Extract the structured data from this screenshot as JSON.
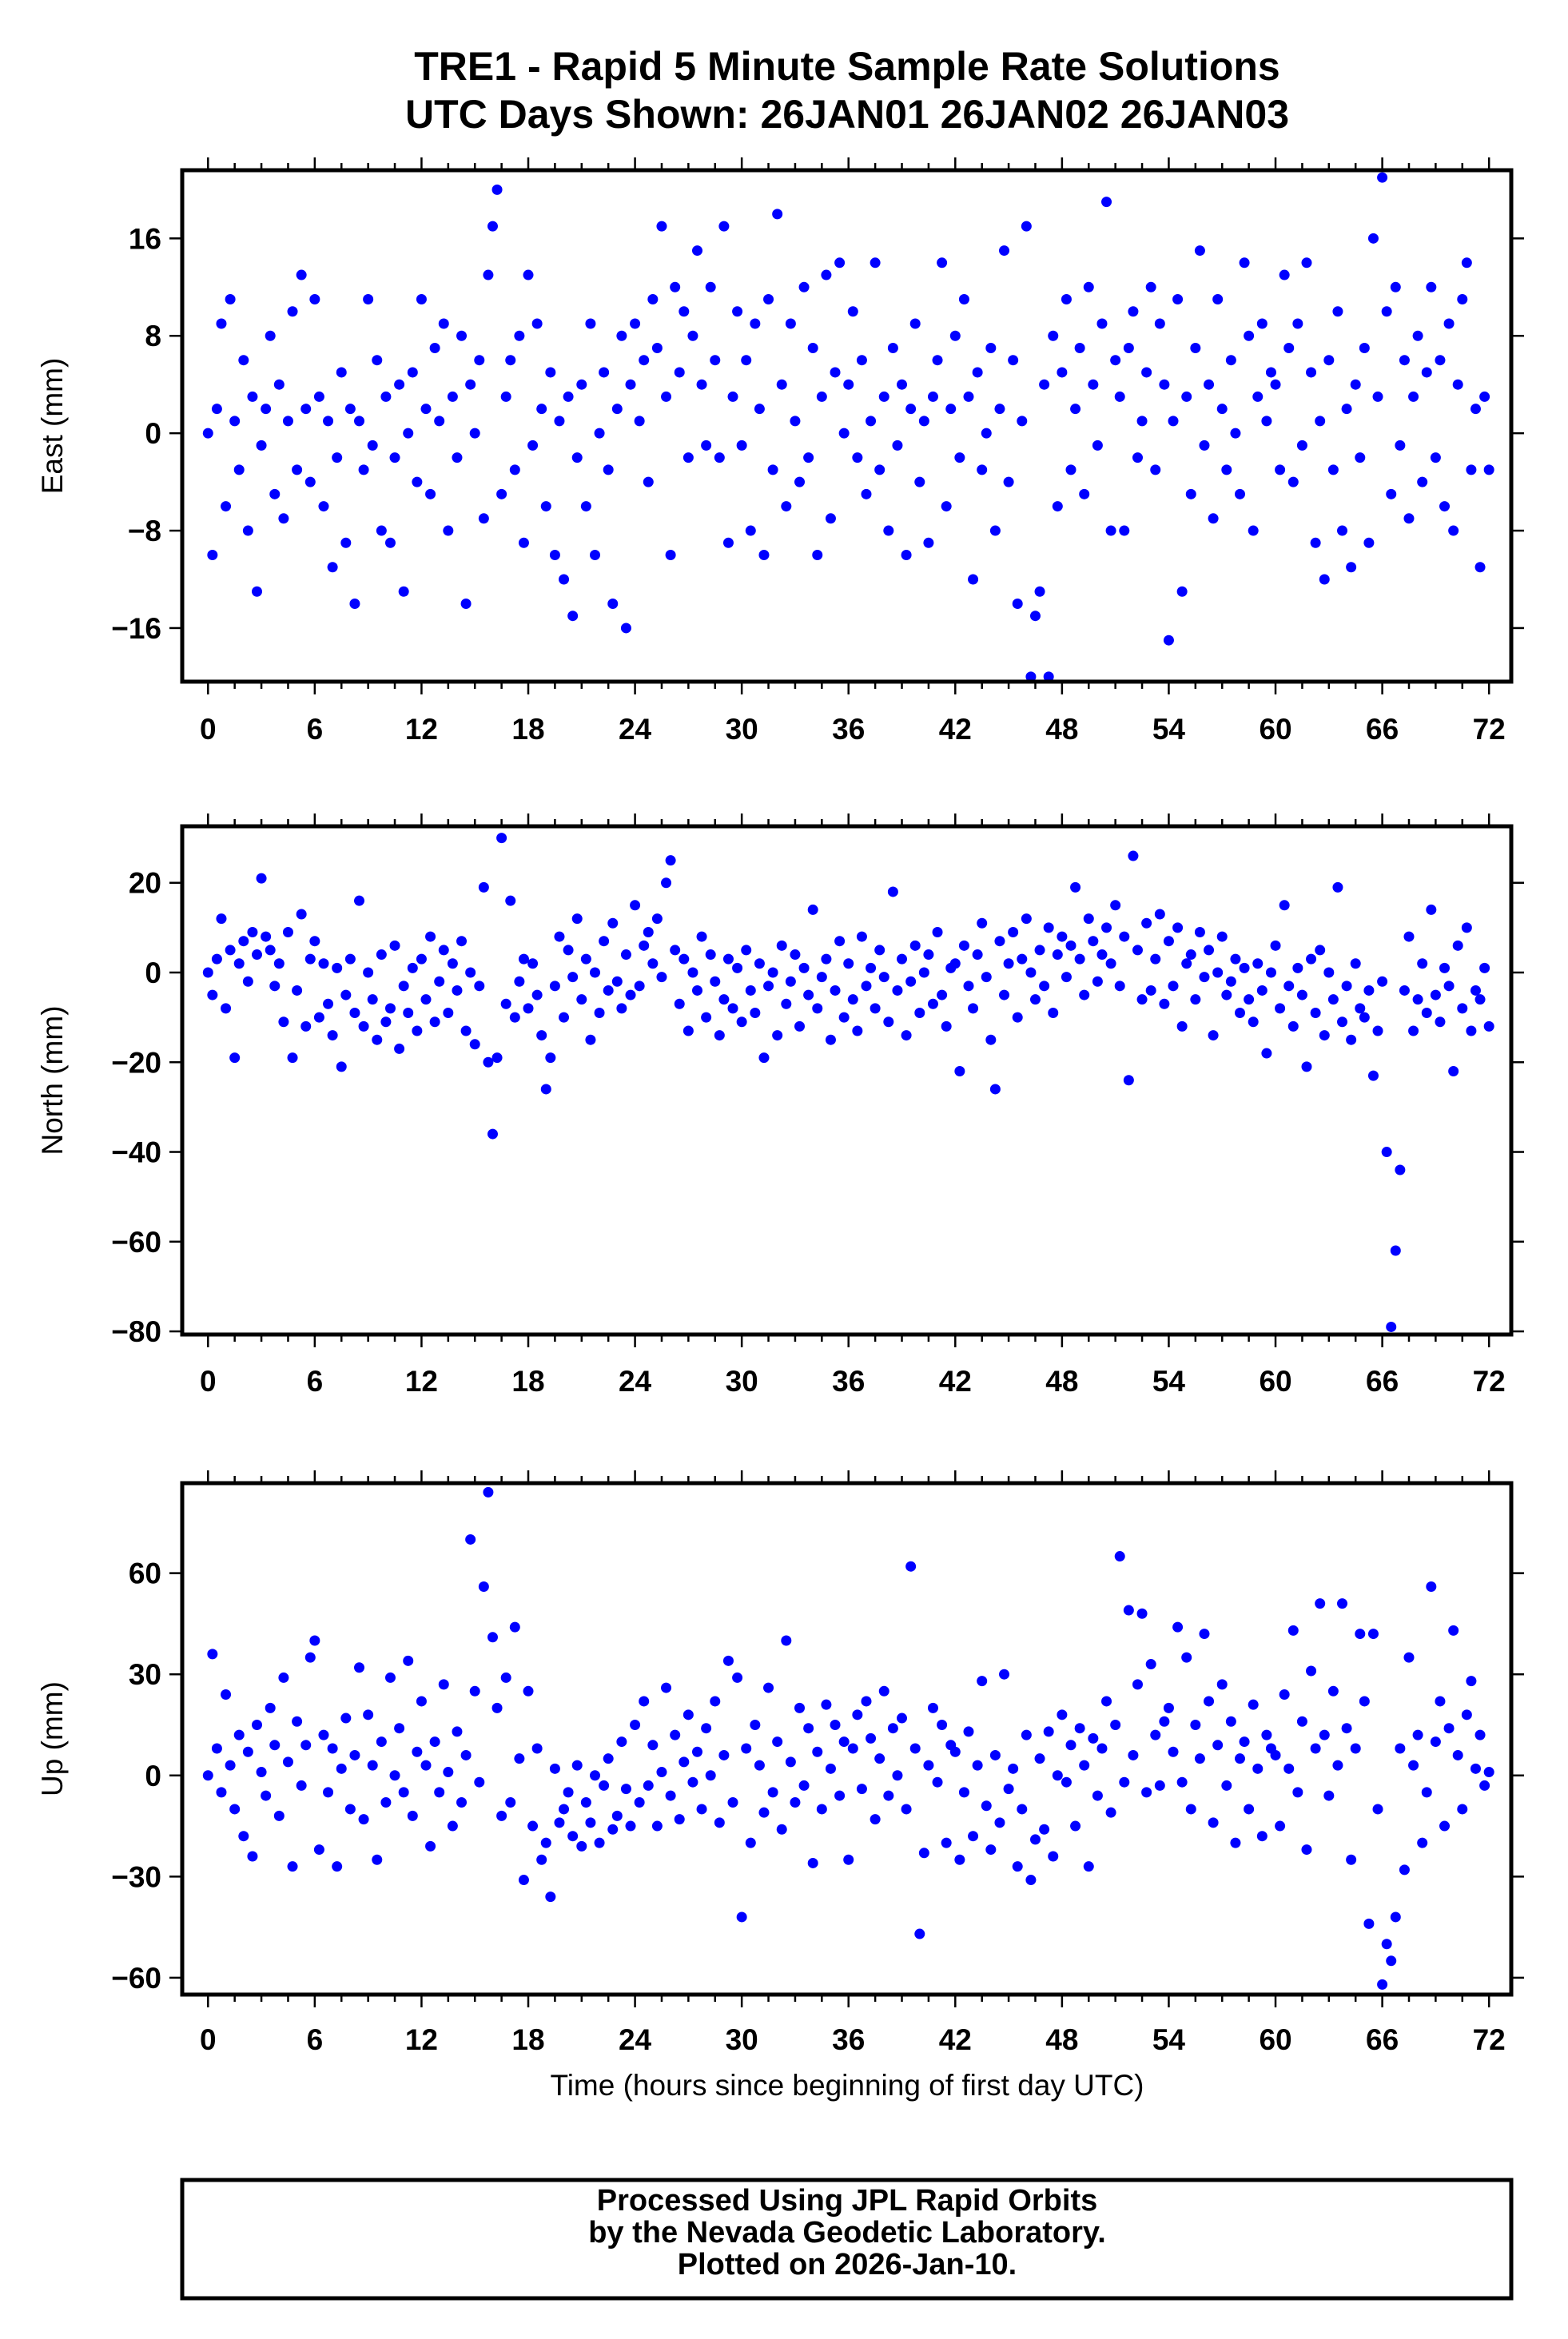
{
  "title": {
    "line1": "TRE1 - Rapid 5 Minute Sample Rate Solutions",
    "line2": "UTC Days Shown:  26JAN01 26JAN02 26JAN03"
  },
  "footer": {
    "line1": "Processed Using JPL Rapid Orbits",
    "line2": "by the Nevada Geodetic Laboratory.",
    "line3": "Plotted on 2026-Jan-10."
  },
  "colors": {
    "points": "#0000ff",
    "axes": "#000000"
  },
  "chart_data": [
    {
      "type": "scatter",
      "name": "east",
      "ylabel": "East (mm)",
      "xlabel": "",
      "xlim": [
        -1.45,
        73.25
      ],
      "ylim": [
        -20.4,
        21.6
      ],
      "xticks": [
        0,
        6,
        12,
        18,
        24,
        30,
        36,
        42,
        48,
        54,
        60,
        66,
        72
      ],
      "yticks": [
        -16,
        -8,
        0,
        8,
        16
      ],
      "x_start": 0,
      "x_step": 0.25,
      "values": [
        0,
        -10,
        2,
        9,
        -6,
        11,
        1,
        -3,
        6,
        -8,
        3,
        -13,
        -1,
        2,
        8,
        -5,
        4,
        -7,
        1,
        10,
        -3,
        13,
        2,
        -4,
        11,
        3,
        -6,
        1,
        -11,
        -2,
        5,
        -9,
        2,
        -14,
        1,
        -3,
        11,
        -1,
        6,
        -8,
        3,
        -9,
        -2,
        4,
        -13,
        0,
        5,
        -4,
        11,
        2,
        -5,
        7,
        1,
        9,
        -8,
        3,
        -2,
        8,
        -14,
        4,
        0,
        6,
        -7,
        13,
        17,
        20,
        -5,
        3,
        6,
        -3,
        8,
        -9,
        13,
        -1,
        9,
        2,
        -6,
        5,
        -10,
        1,
        -12,
        3,
        -15,
        -2,
        4,
        -6,
        9,
        -10,
        0,
        5,
        -3,
        -14,
        2,
        8,
        -16,
        4,
        9,
        1,
        6,
        -4,
        11,
        7,
        17,
        3,
        -10,
        12,
        5,
        10,
        -2,
        8,
        15,
        4,
        -1,
        12,
        6,
        -2,
        17,
        -9,
        3,
        10,
        -1,
        6,
        -8,
        9,
        2,
        -10,
        11,
        -3,
        18,
        4,
        -6,
        9,
        1,
        -4,
        12,
        -2,
        7,
        -10,
        3,
        13,
        -7,
        5,
        14,
        0,
        4,
        10,
        -2,
        6,
        -5,
        1,
        14,
        -3,
        3,
        -8,
        7,
        -1,
        4,
        -10,
        2,
        9,
        -4,
        1,
        -9,
        3,
        6,
        14,
        -6,
        2,
        8,
        -2,
        11,
        3,
        -12,
        5,
        -3,
        0,
        7,
        -8,
        2,
        15,
        -4,
        6,
        -14,
        1,
        17,
        -20,
        -15,
        -13,
        4,
        -20,
        8,
        -6,
        5,
        11,
        -3,
        2,
        7,
        -5,
        12,
        4,
        -1,
        9,
        19,
        -8,
        6,
        3,
        -8,
        7,
        10,
        -2,
        1,
        5,
        12,
        -3,
        9,
        4,
        -17,
        1,
        11,
        -13,
        3,
        -5,
        7,
        15,
        -1,
        4,
        -7,
        11,
        2,
        -3,
        6,
        0,
        -5,
        14,
        8,
        -8,
        3,
        9,
        1,
        5,
        4,
        -3,
        13,
        7,
        -4,
        9,
        -1,
        14,
        5,
        -9,
        1,
        -12,
        6,
        -3,
        10,
        -8,
        2,
        -11,
        4,
        -2,
        7,
        -9,
        16,
        3,
        21,
        10,
        -5,
        12,
        -1,
        6,
        -7,
        3,
        8,
        -4,
        5,
        12,
        -2,
        6,
        -6,
        9,
        -8,
        4,
        11,
        14,
        -3,
        2,
        -11,
        3,
        -3
      ]
    },
    {
      "type": "scatter",
      "name": "north",
      "ylabel": "North (mm)",
      "xlabel": "",
      "xlim": [
        -1.45,
        73.25
      ],
      "ylim": [
        -80.7,
        32.6
      ],
      "xticks": [
        0,
        6,
        12,
        18,
        24,
        30,
        36,
        42,
        48,
        54,
        60,
        66,
        72
      ],
      "yticks": [
        -80,
        -60,
        -40,
        -20,
        0,
        20
      ],
      "x_start": 0,
      "x_step": 0.25,
      "values": [
        0,
        -5,
        3,
        12,
        -8,
        5,
        -19,
        2,
        7,
        -2,
        9,
        4,
        21,
        8,
        5,
        -3,
        2,
        -11,
        9,
        -19,
        -4,
        13,
        -12,
        3,
        7,
        -10,
        2,
        -7,
        -14,
        1,
        -21,
        -5,
        3,
        -9,
        16,
        -12,
        0,
        -6,
        -15,
        4,
        -11,
        -8,
        6,
        -17,
        -3,
        -9,
        1,
        -13,
        3,
        -6,
        8,
        -11,
        -2,
        5,
        -9,
        2,
        -4,
        7,
        -13,
        0,
        -16,
        -3,
        19,
        -20,
        -36,
        -19,
        30,
        -7,
        16,
        -10,
        -2,
        3,
        -8,
        2,
        -5,
        -14,
        -26,
        -19,
        -3,
        8,
        -10,
        5,
        -1,
        12,
        -6,
        3,
        -15,
        0,
        -9,
        7,
        -4,
        11,
        -2,
        -8,
        4,
        -5,
        15,
        -3,
        6,
        9,
        2,
        12,
        -1,
        20,
        25,
        5,
        -7,
        3,
        -13,
        0,
        -4,
        8,
        -10,
        4,
        -2,
        -14,
        -6,
        3,
        -8,
        1,
        -11,
        5,
        -4,
        -9,
        2,
        -19,
        -3,
        0,
        -14,
        6,
        -7,
        -2,
        4,
        -12,
        1,
        -5,
        14,
        -8,
        -1,
        3,
        -15,
        -4,
        7,
        -10,
        2,
        -6,
        -13,
        8,
        -3,
        1,
        -8,
        5,
        -1,
        -11,
        18,
        -4,
        3,
        -14,
        -2,
        6,
        -9,
        0,
        4,
        -7,
        9,
        -5,
        -12,
        1,
        2,
        -22,
        6,
        -3,
        -8,
        4,
        11,
        -1,
        -15,
        -26,
        7,
        -5,
        2,
        9,
        -10,
        3,
        12,
        0,
        -6,
        5,
        -3,
        10,
        -9,
        4,
        8,
        -1,
        6,
        19,
        3,
        -5,
        12,
        7,
        -2,
        4,
        10,
        2,
        15,
        -3,
        8,
        -24,
        26,
        5,
        -6,
        11,
        -4,
        3,
        13,
        -7,
        7,
        -3,
        10,
        -12,
        2,
        4,
        -6,
        9,
        -1,
        5,
        -14,
        0,
        8,
        -5,
        -2,
        3,
        -9,
        1,
        -6,
        -11,
        2,
        -4,
        -18,
        0,
        6,
        -8,
        15,
        -3,
        -12,
        1,
        -5,
        -21,
        3,
        -9,
        5,
        -14,
        0,
        -6,
        19,
        -11,
        -3,
        -15,
        2,
        -8,
        -10,
        -4,
        -23,
        -13,
        -2,
        -40,
        -79,
        -62,
        -44,
        -4,
        8,
        -13,
        -6,
        2,
        -9,
        14,
        -5,
        -11,
        1,
        -3,
        -22,
        6,
        -8,
        10,
        -13,
        -4,
        -6,
        1,
        -12
      ]
    },
    {
      "type": "scatter",
      "name": "up",
      "ylabel": "Up (mm)",
      "xlabel": "Time (hours since beginning of first day UTC)",
      "xlim": [
        -1.45,
        73.25
      ],
      "ylim": [
        -65,
        86.7
      ],
      "xticks": [
        0,
        6,
        12,
        18,
        24,
        30,
        36,
        42,
        48,
        54,
        60,
        66,
        72
      ],
      "yticks": [
        -60,
        -30,
        0,
        30,
        60
      ],
      "x_start": 0,
      "x_step": 0.25,
      "values": [
        0,
        36,
        8,
        -5,
        24,
        3,
        -10,
        12,
        -18,
        7,
        -24,
        15,
        1,
        -6,
        20,
        9,
        -12,
        29,
        4,
        -27,
        16,
        -3,
        9,
        35,
        40,
        -22,
        12,
        -5,
        8,
        -27,
        2,
        17,
        -10,
        6,
        32,
        -13,
        18,
        3,
        -25,
        10,
        -8,
        29,
        0,
        14,
        -5,
        34,
        -12,
        7,
        22,
        3,
        -21,
        10,
        -5,
        27,
        1,
        -15,
        13,
        -8,
        6,
        70,
        25,
        -2,
        56,
        84,
        41,
        20,
        -12,
        29,
        -8,
        44,
        5,
        -31,
        25,
        -15,
        8,
        -25,
        -20,
        -36,
        2,
        -14,
        -10,
        -5,
        -18,
        3,
        -21,
        -8,
        -14,
        0,
        -20,
        -3,
        5,
        -16,
        -12,
        10,
        -4,
        -15,
        15,
        -8,
        22,
        -3,
        9,
        -15,
        1,
        26,
        -6,
        12,
        -13,
        4,
        18,
        -2,
        7,
        -10,
        14,
        0,
        22,
        -14,
        6,
        34,
        -8,
        29,
        -42,
        8,
        -20,
        15,
        3,
        -11,
        26,
        -5,
        10,
        -16,
        40,
        4,
        -8,
        20,
        -3,
        14,
        -26,
        7,
        -10,
        21,
        2,
        15,
        -6,
        10,
        -25,
        8,
        18,
        -4,
        22,
        11,
        -13,
        5,
        25,
        -6,
        14,
        0,
        17,
        -10,
        62,
        8,
        -47,
        -23,
        3,
        20,
        -2,
        15,
        -20,
        9,
        7,
        -25,
        -5,
        13,
        -18,
        3,
        28,
        -9,
        -22,
        6,
        -14,
        30,
        -4,
        2,
        -27,
        -10,
        12,
        -31,
        -19,
        5,
        -16,
        13,
        -24,
        0,
        18,
        -2,
        9,
        -15,
        14,
        3,
        -27,
        11,
        -6,
        8,
        22,
        -11,
        15,
        65,
        -2,
        49,
        6,
        27,
        48,
        -5,
        33,
        12,
        -3,
        16,
        20,
        7,
        44,
        -2,
        35,
        -10,
        15,
        5,
        42,
        22,
        -14,
        9,
        27,
        -3,
        16,
        -20,
        5,
        10,
        -10,
        21,
        2,
        -18,
        12,
        8,
        6,
        -15,
        24,
        2,
        43,
        -5,
        16,
        -22,
        31,
        8,
        51,
        12,
        -6,
        25,
        3,
        51,
        14,
        -25,
        8,
        42,
        22,
        -44,
        42,
        -10,
        -62,
        -50,
        -55,
        -42,
        8,
        -28,
        35,
        3,
        12,
        -20,
        -5,
        56,
        10,
        22,
        -15,
        14,
        43,
        6,
        -10,
        18,
        28,
        2,
        12,
        -3,
        1
      ]
    }
  ]
}
